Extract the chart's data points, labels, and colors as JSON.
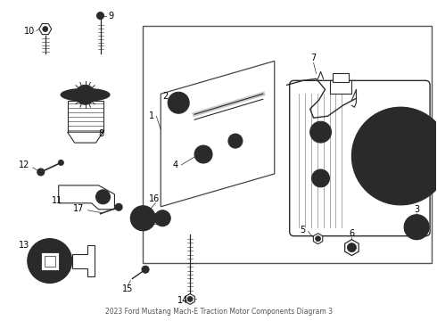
{
  "background_color": "#ffffff",
  "line_color": "#2a2a2a",
  "fig_width": 4.9,
  "fig_height": 3.6,
  "dpi": 100,
  "title": "2023 Ford Mustang Mach-E Traction Motor Components Diagram 3"
}
